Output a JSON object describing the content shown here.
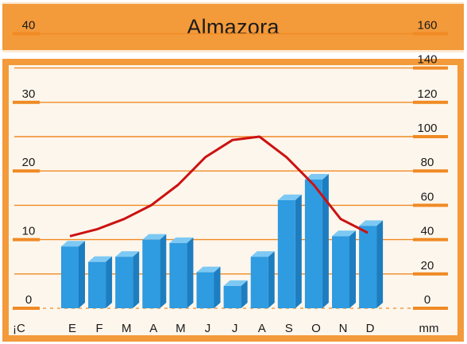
{
  "title": "Almazora",
  "colors": {
    "frame": "#f39a3a",
    "panel": "#fdf6ec",
    "bar": "#2f9be0",
    "bar_top": "#7dc9f4",
    "bar_side": "#1c7dc0",
    "line": "#cc1111",
    "grid": "#f08a24"
  },
  "chart_data": {
    "type": "bar",
    "title": "Almazora",
    "categories": [
      "E",
      "F",
      "M",
      "A",
      "M",
      "J",
      "J",
      "A",
      "S",
      "O",
      "N",
      "D"
    ],
    "series": [
      {
        "kind": "bar",
        "axis": "right",
        "values": [
          36,
          27,
          30,
          40,
          38,
          21,
          13,
          30,
          63,
          75,
          42,
          48
        ]
      },
      {
        "kind": "line",
        "axis": "left",
        "values": [
          10.5,
          11.5,
          13,
          15,
          18,
          22,
          24.5,
          25,
          22,
          18,
          13,
          11
        ]
      }
    ],
    "left_axis": {
      "label": "¡C",
      "ticks": [
        "0",
        "10",
        "20",
        "30",
        "40"
      ],
      "ylim": [
        0,
        40
      ]
    },
    "right_axis": {
      "label": "mm",
      "ticks": [
        "0",
        "20",
        "40",
        "60",
        "80",
        "100",
        "120",
        "140",
        "160"
      ],
      "ylim": [
        0,
        160
      ]
    },
    "grid": true
  }
}
